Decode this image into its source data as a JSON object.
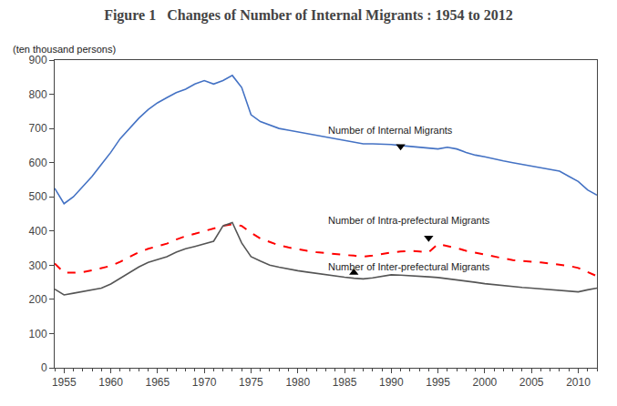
{
  "chart_data": {
    "type": "line",
    "title": "Figure 1   Changes of Number of Internal Migrants : 1954 to 2012",
    "ylabel": "(ten thousand persons)",
    "x": [
      1954,
      1955,
      1956,
      1957,
      1958,
      1959,
      1960,
      1961,
      1962,
      1963,
      1964,
      1965,
      1966,
      1967,
      1968,
      1969,
      1970,
      1971,
      1972,
      1973,
      1974,
      1975,
      1976,
      1977,
      1978,
      1979,
      1980,
      1981,
      1982,
      1983,
      1984,
      1985,
      1986,
      1987,
      1988,
      1989,
      1990,
      1991,
      1992,
      1993,
      1994,
      1995,
      1996,
      1997,
      1998,
      1999,
      2000,
      2001,
      2002,
      2003,
      2004,
      2005,
      2006,
      2007,
      2008,
      2009,
      2010,
      2011,
      2012
    ],
    "xlim": [
      1954,
      2012
    ],
    "xticks": [
      1955,
      1960,
      1965,
      1970,
      1975,
      1980,
      1985,
      1990,
      1995,
      2000,
      2005,
      2010
    ],
    "ylim": [
      0,
      900
    ],
    "yticks": [
      0,
      100,
      200,
      300,
      400,
      500,
      600,
      700,
      800,
      900
    ],
    "grid": false,
    "series": [
      {
        "name": "Number of Internal Migrants",
        "color": "#4472C4",
        "line_style": "solid",
        "values": [
          525,
          480,
          500,
          530,
          560,
          595,
          630,
          670,
          700,
          730,
          755,
          775,
          790,
          805,
          815,
          830,
          840,
          830,
          840,
          855,
          820,
          740,
          720,
          710,
          700,
          695,
          690,
          685,
          680,
          675,
          670,
          665,
          660,
          655,
          655,
          655,
          653,
          650,
          648,
          645,
          643,
          640,
          645,
          640,
          630,
          622,
          617,
          610,
          605,
          600,
          595,
          590,
          585,
          580,
          575,
          560,
          545,
          520,
          505
        ],
        "label": {
          "x": 1983,
          "y": 695
        },
        "pointer": {
          "x": 1991,
          "y": 648,
          "marker": "triangle-down",
          "color": "black"
        }
      },
      {
        "name": "Number of Intra-prefectural Migrants",
        "color": "#FF0000",
        "line_style": "dashed",
        "values": [
          305,
          278,
          278,
          280,
          285,
          292,
          298,
          310,
          323,
          338,
          348,
          355,
          363,
          375,
          385,
          392,
          400,
          408,
          415,
          420,
          415,
          395,
          378,
          368,
          358,
          352,
          346,
          342,
          338,
          335,
          332,
          330,
          328,
          325,
          328,
          333,
          337,
          340,
          342,
          340,
          338,
          362,
          357,
          350,
          342,
          336,
          330,
          325,
          320,
          315,
          312,
          310,
          308,
          305,
          302,
          298,
          292,
          280,
          268
        ],
        "label": {
          "x": 1983,
          "y": 432
        },
        "pointer": {
          "x": 1994,
          "y": 380,
          "marker": "triangle-down",
          "color": "black"
        }
      },
      {
        "name": "Number of Inter-prefectural Migrants",
        "color": "#555555",
        "line_style": "solid",
        "values": [
          230,
          213,
          218,
          223,
          228,
          233,
          245,
          262,
          278,
          295,
          308,
          316,
          325,
          338,
          348,
          355,
          362,
          370,
          415,
          425,
          365,
          325,
          312,
          300,
          294,
          288,
          284,
          280,
          276,
          272,
          268,
          265,
          262,
          260,
          263,
          268,
          272,
          271,
          270,
          268,
          266,
          264,
          261,
          258,
          254,
          250,
          246,
          243,
          240,
          237,
          235,
          233,
          231,
          229,
          227,
          224,
          222,
          228,
          233
        ],
        "label": {
          "x": 1983,
          "y": 295
        },
        "pointer": {
          "x": 1986,
          "y": 278,
          "marker": "triangle-up",
          "color": "black"
        }
      }
    ]
  }
}
